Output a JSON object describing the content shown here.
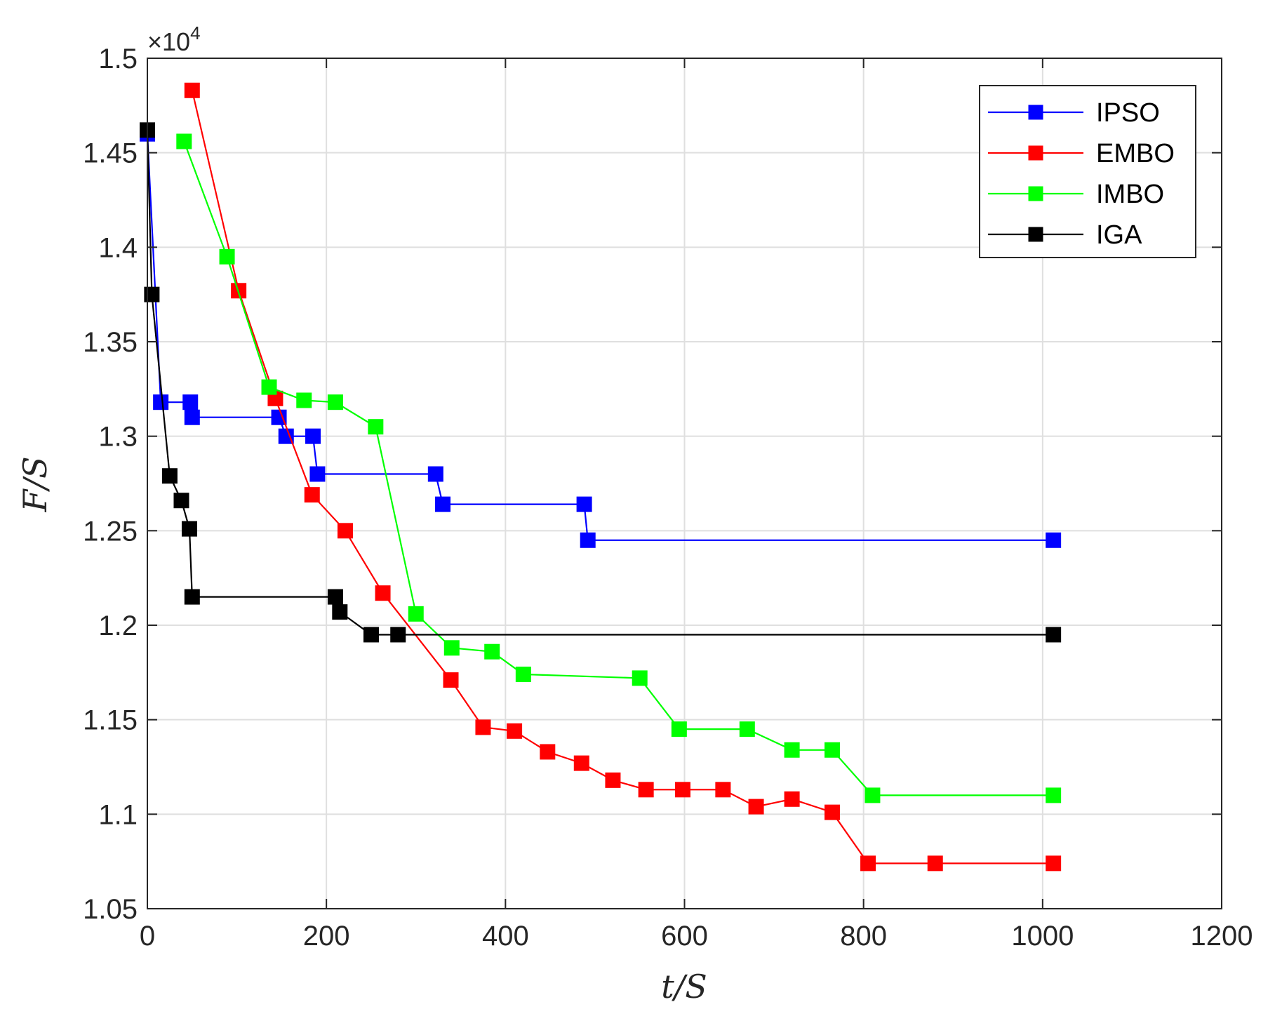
{
  "chart_data": {
    "type": "line",
    "xlabel": "t/S",
    "ylabel": "F/S",
    "xlim": [
      0,
      1200
    ],
    "ylim": [
      10500,
      15000
    ],
    "x_ticks": [
      0,
      200,
      400,
      600,
      800,
      1000,
      1200
    ],
    "x_tick_labels": [
      "0",
      "200",
      "400",
      "600",
      "800",
      "1000",
      "1200"
    ],
    "y_ticks": [
      10500,
      11000,
      11500,
      12000,
      12500,
      13000,
      13500,
      14000,
      14500,
      15000
    ],
    "y_tick_labels": [
      "1.05",
      "1.1",
      "1.15",
      "1.2",
      "1.25",
      "1.3",
      "1.35",
      "1.4",
      "1.45",
      "1.5"
    ],
    "y_exponent_label": "×10",
    "y_exponent_power": "4",
    "grid": true,
    "legend_position": "top-right",
    "series": [
      {
        "name": "IPSO",
        "color": "#0000ff",
        "marker": "square",
        "x": [
          0,
          15,
          48,
          50,
          147,
          155,
          185,
          190,
          322,
          330,
          488,
          492,
          1012
        ],
        "y": [
          14600,
          13180,
          13180,
          13100,
          13100,
          13000,
          13000,
          12800,
          12800,
          12640,
          12640,
          12450,
          12450
        ]
      },
      {
        "name": "EMBO",
        "color": "#ff0000",
        "marker": "square",
        "x": [
          50,
          102,
          143,
          184,
          221,
          263,
          339,
          375,
          410,
          447,
          485,
          520,
          557,
          598,
          643,
          680,
          720,
          765,
          805,
          880,
          1012
        ],
        "y": [
          14830,
          13770,
          13200,
          12690,
          12500,
          12170,
          11710,
          11460,
          11440,
          11330,
          11270,
          11180,
          11130,
          11130,
          11130,
          11040,
          11080,
          11010,
          10740,
          10740,
          10740
        ]
      },
      {
        "name": "IMBO",
        "color": "#00ff00",
        "marker": "square",
        "x": [
          41,
          89,
          136,
          175,
          210,
          255,
          300,
          340,
          385,
          420,
          550,
          594,
          670,
          720,
          765,
          810,
          1012
        ],
        "y": [
          14560,
          13950,
          13260,
          13190,
          13180,
          13050,
          12060,
          11880,
          11860,
          11740,
          11720,
          11450,
          11450,
          11340,
          11340,
          11100,
          11100
        ]
      },
      {
        "name": "IGA",
        "color": "#000000",
        "marker": "square",
        "x": [
          0,
          5,
          25,
          38,
          47,
          50,
          210,
          215,
          250,
          280,
          1012
        ],
        "y": [
          14620,
          13750,
          12790,
          12660,
          12510,
          12150,
          12150,
          12070,
          11950,
          11950,
          11950
        ]
      }
    ]
  }
}
